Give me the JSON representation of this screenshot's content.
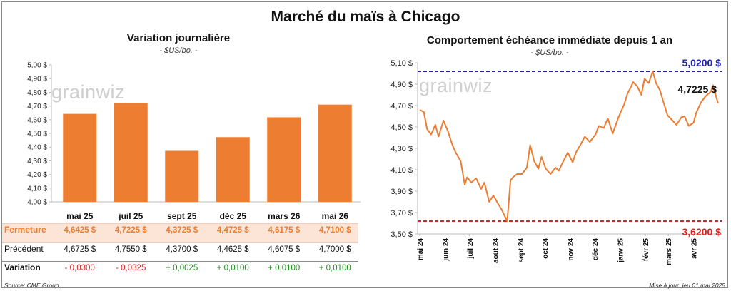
{
  "title": "Marché du maïs à Chicago",
  "left_panel": {
    "title": "Variation journalière",
    "subtitle": "- $US/bo. -",
    "watermark": "grainwiz"
  },
  "right_panel": {
    "title": "Comportement échéance immédiate depuis 1 an",
    "subtitle": "- $US/bo. -",
    "watermark": "grainwiz",
    "high_label": "5,0200 $",
    "low_label": "3,6200 $",
    "last_label": "4,7225 $"
  },
  "table": {
    "row_labels": [
      "Fermeture",
      "Précédent",
      "Variation"
    ],
    "fermeture": [
      "4,6425 $",
      "4,7225 $",
      "4,3725 $",
      "4,4725 $",
      "4,6175 $",
      "4,7100 $"
    ],
    "precedent": [
      "4,6725 $",
      "4,7550 $",
      "4,3700 $",
      "4,4625 $",
      "4,6075 $",
      "4,7000 $"
    ],
    "variation": [
      "- 0,0300",
      "- 0,0325",
      "+ 0,0025",
      "+ 0,0100",
      "+ 0,0100",
      "+ 0,0100"
    ]
  },
  "footer": {
    "source": "Source: CME Group",
    "updated": "Mise à jour: jeu 01 mai 2025"
  },
  "colors": {
    "bar": "#ED7D31",
    "line": "#ED7D31",
    "high": "#2222BB",
    "low": "#E02020",
    "negative": "#E02020",
    "positive": "#1E8C1E",
    "fermeture_bg": "#FCE4D6"
  },
  "chart_data": [
    {
      "type": "bar",
      "categories": [
        "mai 25",
        "juil 25",
        "sept 25",
        "déc 25",
        "mars 26",
        "mai 26"
      ],
      "values": [
        4.6425,
        4.7225,
        4.3725,
        4.4725,
        4.6175,
        4.71
      ],
      "ylim": [
        4.0,
        5.0
      ],
      "yticks": [
        "4,00 $",
        "4,10 $",
        "4,20 $",
        "4,30 $",
        "4,40 $",
        "4,50 $",
        "4,60 $",
        "4,70 $",
        "4,80 $",
        "4,90 $",
        "5,00 $"
      ]
    },
    {
      "type": "line",
      "ylim": [
        3.5,
        5.1
      ],
      "yticks": [
        "3,50 $",
        "3,70 $",
        "3,90 $",
        "4,10 $",
        "4,30 $",
        "4,50 $",
        "4,70 $",
        "4,90 $",
        "5,10 $"
      ],
      "xticks": [
        "mai 24",
        "juin 24",
        "juil 24",
        "août 24",
        "sept 24",
        "oct 24",
        "nov 24",
        "déc 24",
        "janv 25",
        "févr 25",
        "mars 25",
        "avr 25"
      ],
      "reference_lines": [
        5.02,
        3.62
      ],
      "x": [
        "2024-05-01",
        "2024-05-06",
        "2024-05-10",
        "2024-05-15",
        "2024-05-20",
        "2024-05-24",
        "2024-05-30",
        "2024-06-04",
        "2024-06-10",
        "2024-06-14",
        "2024-06-20",
        "2024-06-25",
        "2024-06-28",
        "2024-07-03",
        "2024-07-09",
        "2024-07-15",
        "2024-07-19",
        "2024-07-25",
        "2024-07-30",
        "2024-08-05",
        "2024-08-09",
        "2024-08-14",
        "2024-08-16",
        "2024-08-20",
        "2024-08-23",
        "2024-08-28",
        "2024-09-03",
        "2024-09-09",
        "2024-09-13",
        "2024-09-18",
        "2024-09-23",
        "2024-09-27",
        "2024-10-02",
        "2024-10-08",
        "2024-10-14",
        "2024-10-18",
        "2024-10-23",
        "2024-10-29",
        "2024-11-04",
        "2024-11-08",
        "2024-11-14",
        "2024-11-19",
        "2024-11-25",
        "2024-12-02",
        "2024-12-06",
        "2024-12-12",
        "2024-12-17",
        "2024-12-23",
        "2024-12-30",
        "2025-01-06",
        "2025-01-10",
        "2025-01-14",
        "2025-01-17",
        "2025-01-22",
        "2025-01-27",
        "2025-01-31",
        "2025-02-05",
        "2025-02-10",
        "2025-02-14",
        "2025-02-19",
        "2025-02-24",
        "2025-02-28",
        "2025-03-05",
        "2025-03-11",
        "2025-03-17",
        "2025-03-21",
        "2025-03-26",
        "2025-04-01",
        "2025-04-04",
        "2025-04-10",
        "2025-04-16",
        "2025-04-22",
        "2025-04-25",
        "2025-04-29",
        "2025-05-01"
      ],
      "y": [
        4.66,
        4.64,
        4.48,
        4.43,
        4.52,
        4.41,
        4.56,
        4.47,
        4.33,
        4.26,
        4.18,
        3.96,
        4.03,
        3.98,
        4.02,
        3.92,
        3.98,
        3.8,
        3.86,
        3.78,
        3.73,
        3.65,
        3.62,
        4.0,
        4.03,
        4.06,
        4.06,
        4.12,
        4.33,
        4.18,
        4.11,
        4.22,
        4.11,
        4.06,
        4.12,
        4.09,
        4.17,
        4.26,
        4.17,
        4.26,
        4.34,
        4.41,
        4.36,
        4.43,
        4.51,
        4.49,
        4.58,
        4.44,
        4.59,
        4.71,
        4.81,
        4.87,
        4.92,
        4.88,
        4.8,
        4.95,
        4.91,
        5.02,
        4.91,
        4.84,
        4.71,
        4.61,
        4.57,
        4.52,
        4.59,
        4.6,
        4.51,
        4.54,
        4.63,
        4.73,
        4.79,
        4.83,
        4.89,
        4.77,
        4.72
      ]
    }
  ]
}
